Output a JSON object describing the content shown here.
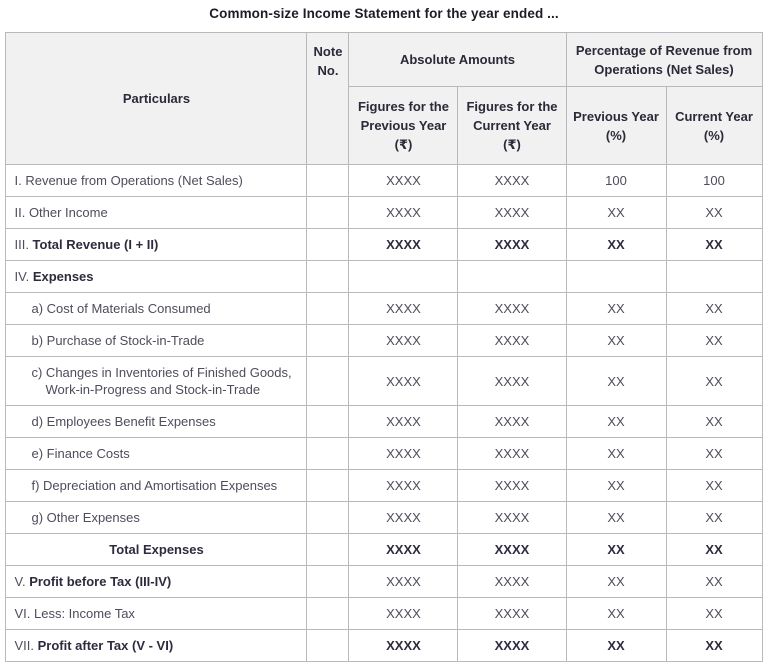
{
  "title": "Common-size Income Statement for the year ended ...",
  "colors": {
    "header_bg": "#f1f1f2",
    "inner_border": "#b7babd",
    "outer_border": "#a6a9ad",
    "body_text": "#4d4d5c",
    "bold_text": "#2c2c3e",
    "title_text": "#1d1d29"
  },
  "table": {
    "headers": {
      "particulars": "Particulars",
      "note_no": "Note No.",
      "absolute_amounts": "Absolute Amounts",
      "percentage_group": "Percentage of Revenue from Operations (Net Sales)",
      "sub": [
        "Figures for the Previous Year (₹)",
        "Figures for the Current Year (₹)",
        "Previous Year (%)",
        "Current Year (%)"
      ]
    },
    "rows": [
      {
        "prefix": "I.",
        "label": "Revenue from Operations (Net Sales)",
        "bold_label": false,
        "indent": false,
        "hang": false,
        "center": false,
        "bold_values": false,
        "note": "",
        "values": [
          "XXXX",
          "XXXX",
          "100",
          "100"
        ]
      },
      {
        "prefix": "II.",
        "label": "Other Income",
        "bold_label": false,
        "indent": false,
        "hang": false,
        "center": false,
        "bold_values": false,
        "note": "",
        "values": [
          "XXXX",
          "XXXX",
          "XX",
          "XX"
        ]
      },
      {
        "prefix": "III.",
        "label": "Total Revenue (I + II)",
        "bold_label": true,
        "indent": false,
        "hang": false,
        "center": false,
        "bold_values": true,
        "note": "",
        "values": [
          "XXXX",
          "XXXX",
          "XX",
          "XX"
        ]
      },
      {
        "prefix": "IV.",
        "label": "Expenses",
        "bold_label": true,
        "indent": false,
        "hang": false,
        "center": false,
        "bold_values": false,
        "note": "",
        "values": [
          "",
          "",
          "",
          ""
        ]
      },
      {
        "prefix": "",
        "label": "a) Cost of Materials Consumed",
        "bold_label": false,
        "indent": true,
        "hang": false,
        "center": false,
        "bold_values": false,
        "note": "",
        "values": [
          "XXXX",
          "XXXX",
          "XX",
          "XX"
        ]
      },
      {
        "prefix": "",
        "label": "b) Purchase of Stock-in-Trade",
        "bold_label": false,
        "indent": true,
        "hang": false,
        "center": false,
        "bold_values": false,
        "note": "",
        "values": [
          "XXXX",
          "XXXX",
          "XX",
          "XX"
        ]
      },
      {
        "prefix": "",
        "label": "c) Changes in Inventories of Finished Goods, Work-in-Progress and Stock-in-Trade",
        "bold_label": false,
        "indent": false,
        "hang": true,
        "center": false,
        "bold_values": false,
        "note": "",
        "values": [
          "XXXX",
          "XXXX",
          "XX",
          "XX"
        ]
      },
      {
        "prefix": "",
        "label": "d) Employees Benefit Expenses",
        "bold_label": false,
        "indent": true,
        "hang": false,
        "center": false,
        "bold_values": false,
        "note": "",
        "values": [
          "XXXX",
          "XXXX",
          "XX",
          "XX"
        ]
      },
      {
        "prefix": "",
        "label": "e) Finance Costs",
        "bold_label": false,
        "indent": true,
        "hang": false,
        "center": false,
        "bold_values": false,
        "note": "",
        "values": [
          "XXXX",
          "XXXX",
          "XX",
          "XX"
        ]
      },
      {
        "prefix": "",
        "label": "f) Depreciation and Amortisation Expenses",
        "bold_label": false,
        "indent": true,
        "hang": false,
        "center": false,
        "bold_values": false,
        "note": "",
        "values": [
          "XXXX",
          "XXXX",
          "XX",
          "XX"
        ]
      },
      {
        "prefix": "",
        "label": "g) Other Expenses",
        "bold_label": false,
        "indent": true,
        "hang": false,
        "center": false,
        "bold_values": false,
        "note": "",
        "values": [
          "XXXX",
          "XXXX",
          "XX",
          "XX"
        ]
      },
      {
        "prefix": "",
        "label": "Total Expenses",
        "bold_label": true,
        "indent": false,
        "hang": false,
        "center": true,
        "bold_values": true,
        "note": "",
        "values": [
          "XXXX",
          "XXXX",
          "XX",
          "XX"
        ]
      },
      {
        "prefix": "V.",
        "label": "Profit before Tax (III-IV)",
        "bold_label": true,
        "indent": false,
        "hang": false,
        "center": false,
        "bold_values": false,
        "note": "",
        "values": [
          "XXXX",
          "XXXX",
          "XX",
          "XX"
        ]
      },
      {
        "prefix": "VI.",
        "label": "Less: Income Tax",
        "bold_label": false,
        "indent": false,
        "hang": false,
        "center": false,
        "bold_values": false,
        "note": "",
        "values": [
          "XXXX",
          "XXXX",
          "XX",
          "XX"
        ]
      },
      {
        "prefix": "VII.",
        "label": "Profit after Tax (V - VI)",
        "bold_label": true,
        "indent": false,
        "hang": false,
        "center": false,
        "bold_values": true,
        "note": "",
        "values": [
          "XXXX",
          "XXXX",
          "XX",
          "XX"
        ]
      }
    ]
  }
}
